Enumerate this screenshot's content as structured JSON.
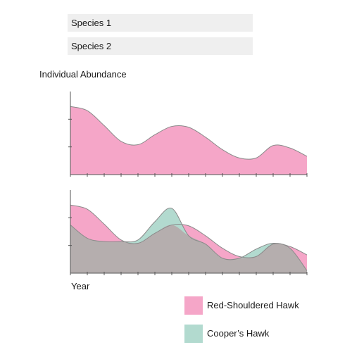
{
  "controls": {
    "species1_label": "Species 1",
    "species2_label": "Species 2"
  },
  "chart_data": {
    "type": "area",
    "ylabel": "Individual Abundance",
    "xlabel": "Year",
    "x": [
      0,
      0.5,
      1,
      1.5,
      2,
      2.5,
      3,
      3.5,
      4,
      4.5,
      5,
      5.5,
      6,
      6.5,
      7
    ],
    "xlim": [
      0,
      7
    ],
    "ylim": [
      0,
      1
    ],
    "colors": {
      "red_shouldered": "#f5a6c8",
      "coopers": "#b2dacf",
      "overlap": "#b5aeae",
      "outline": "#8a8a8a"
    },
    "panels": [
      {
        "series": [
          {
            "name": "Red-Shouldered Hawk",
            "color": "#f5a6c8",
            "values": [
              0.82,
              0.77,
              0.59,
              0.4,
              0.36,
              0.48,
              0.58,
              0.57,
              0.45,
              0.3,
              0.2,
              0.2,
              0.35,
              0.32,
              0.22
            ]
          }
        ]
      },
      {
        "series": [
          {
            "name": "Red-Shouldered Hawk",
            "color": "#f5a6c8",
            "values": [
              0.82,
              0.77,
              0.59,
              0.4,
              0.36,
              0.48,
              0.58,
              0.57,
              0.45,
              0.3,
              0.2,
              0.2,
              0.35,
              0.32,
              0.22
            ]
          },
          {
            "name": "Cooper's Hawk",
            "color": "#b2dacf",
            "values": [
              0.58,
              0.42,
              0.38,
              0.38,
              0.4,
              0.62,
              0.78,
              0.45,
              0.35,
              0.18,
              0.18,
              0.29,
              0.36,
              0.3,
              0.03
            ]
          }
        ]
      }
    ]
  },
  "legend": {
    "items": [
      {
        "label": "Red-Shouldered Hawk",
        "color": "#f5a6c8"
      },
      {
        "label": "Cooper’s Hawk",
        "color": "#b2dacf"
      }
    ]
  }
}
